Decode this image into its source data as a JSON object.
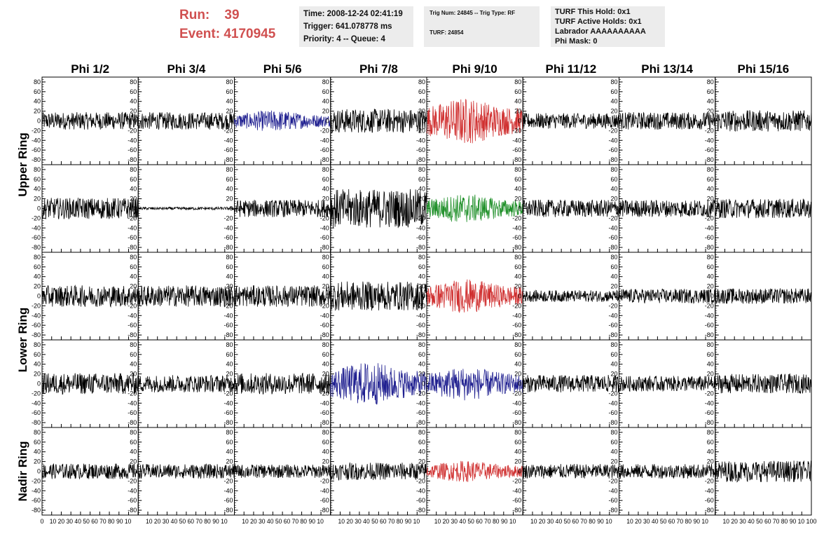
{
  "header": {
    "run_label": "Run:    39",
    "event_label": "Event: 4170945",
    "time_line": "Time: 2008-12-24 02:41:19",
    "trigger_line": "Trigger: 641.078778 ms",
    "priority_line": "Priority: 4 -- Queue: 4",
    "trig_line": "Trig Num: 24845 -- Trig Type: RF",
    "turf_line": "TURF: 24854",
    "turf_this_hold": "TURF This Hold: 0x1",
    "turf_active_holds": "TURF Active Holds: 0x1",
    "labrador": "Labrador AAAAAAAAAA",
    "phi_mask": "Phi Mask: 0"
  },
  "colors": {
    "header_red": "#d05050",
    "black_trace": "#000000",
    "red_trace": "#d03030",
    "blue_trace": "#202090",
    "green_trace": "#20902a"
  },
  "chart_data": {
    "type": "line",
    "columns": [
      "Phi 1/2",
      "Phi 3/4",
      "Phi 5/6",
      "Phi 7/8",
      "Phi 9/10",
      "Phi 11/12",
      "Phi 13/14",
      "Phi 15/16"
    ],
    "rows": [
      "Upper Ring",
      "Upper Ring",
      "Lower Ring",
      "Lower Ring",
      "Nadir Ring"
    ],
    "row_labels": [
      "Upper Ring",
      "Lower Ring",
      "Nadir Ring"
    ],
    "xlim": [
      0,
      100
    ],
    "ylim": [
      -90,
      90
    ],
    "x_ticks": [
      0,
      10,
      20,
      30,
      40,
      50,
      60,
      70,
      80,
      90,
      100
    ],
    "x_tick_labels": [
      "10 20 30 40 50 60 70 80 90 10",
      "0",
      "100"
    ],
    "y_ticks": [
      80,
      60,
      40,
      20,
      0,
      -20,
      -40,
      -60,
      -80
    ],
    "y_tick_labels": [
      "80",
      "60",
      "40",
      "20",
      "0",
      "-20",
      "-40",
      "-60",
      "-80"
    ],
    "panels": [
      [
        {
          "color": "black",
          "amplitude": 18
        },
        {
          "color": "black",
          "amplitude": 18
        },
        {
          "color": "blue",
          "amplitude": 22
        },
        {
          "color": "black",
          "amplitude": 25
        },
        {
          "color": "red",
          "amplitude": 48
        },
        {
          "color": "black",
          "amplitude": 16
        },
        {
          "color": "black",
          "amplitude": 18
        },
        {
          "color": "black",
          "amplitude": 22
        }
      ],
      [
        {
          "color": "black",
          "amplitude": 22
        },
        {
          "color": "black",
          "amplitude": 3
        },
        {
          "color": "black",
          "amplitude": 18
        },
        {
          "color": "black",
          "amplitude": 40
        },
        {
          "color": "green",
          "amplitude": 30
        },
        {
          "color": "black",
          "amplitude": 18
        },
        {
          "color": "black",
          "amplitude": 18
        },
        {
          "color": "black",
          "amplitude": 20
        }
      ],
      [
        {
          "color": "black",
          "amplitude": 22
        },
        {
          "color": "black",
          "amplitude": 22
        },
        {
          "color": "black",
          "amplitude": 22
        },
        {
          "color": "black",
          "amplitude": 30
        },
        {
          "color": "red",
          "amplitude": 35
        },
        {
          "color": "black",
          "amplitude": 12
        },
        {
          "color": "black",
          "amplitude": 15
        },
        {
          "color": "black",
          "amplitude": 16
        }
      ],
      [
        {
          "color": "black",
          "amplitude": 22
        },
        {
          "color": "black",
          "amplitude": 18
        },
        {
          "color": "black",
          "amplitude": 22
        },
        {
          "color": "blue",
          "amplitude": 45
        },
        {
          "color": "blue",
          "amplitude": 35
        },
        {
          "color": "black",
          "amplitude": 18
        },
        {
          "color": "black",
          "amplitude": 16
        },
        {
          "color": "black",
          "amplitude": 20
        }
      ],
      [
        {
          "color": "black",
          "amplitude": 16
        },
        {
          "color": "black",
          "amplitude": 15
        },
        {
          "color": "black",
          "amplitude": 14
        },
        {
          "color": "black",
          "amplitude": 18
        },
        {
          "color": "red",
          "amplitude": 22
        },
        {
          "color": "black",
          "amplitude": 15
        },
        {
          "color": "black",
          "amplitude": 15
        },
        {
          "color": "black",
          "amplitude": 22
        }
      ]
    ]
  }
}
